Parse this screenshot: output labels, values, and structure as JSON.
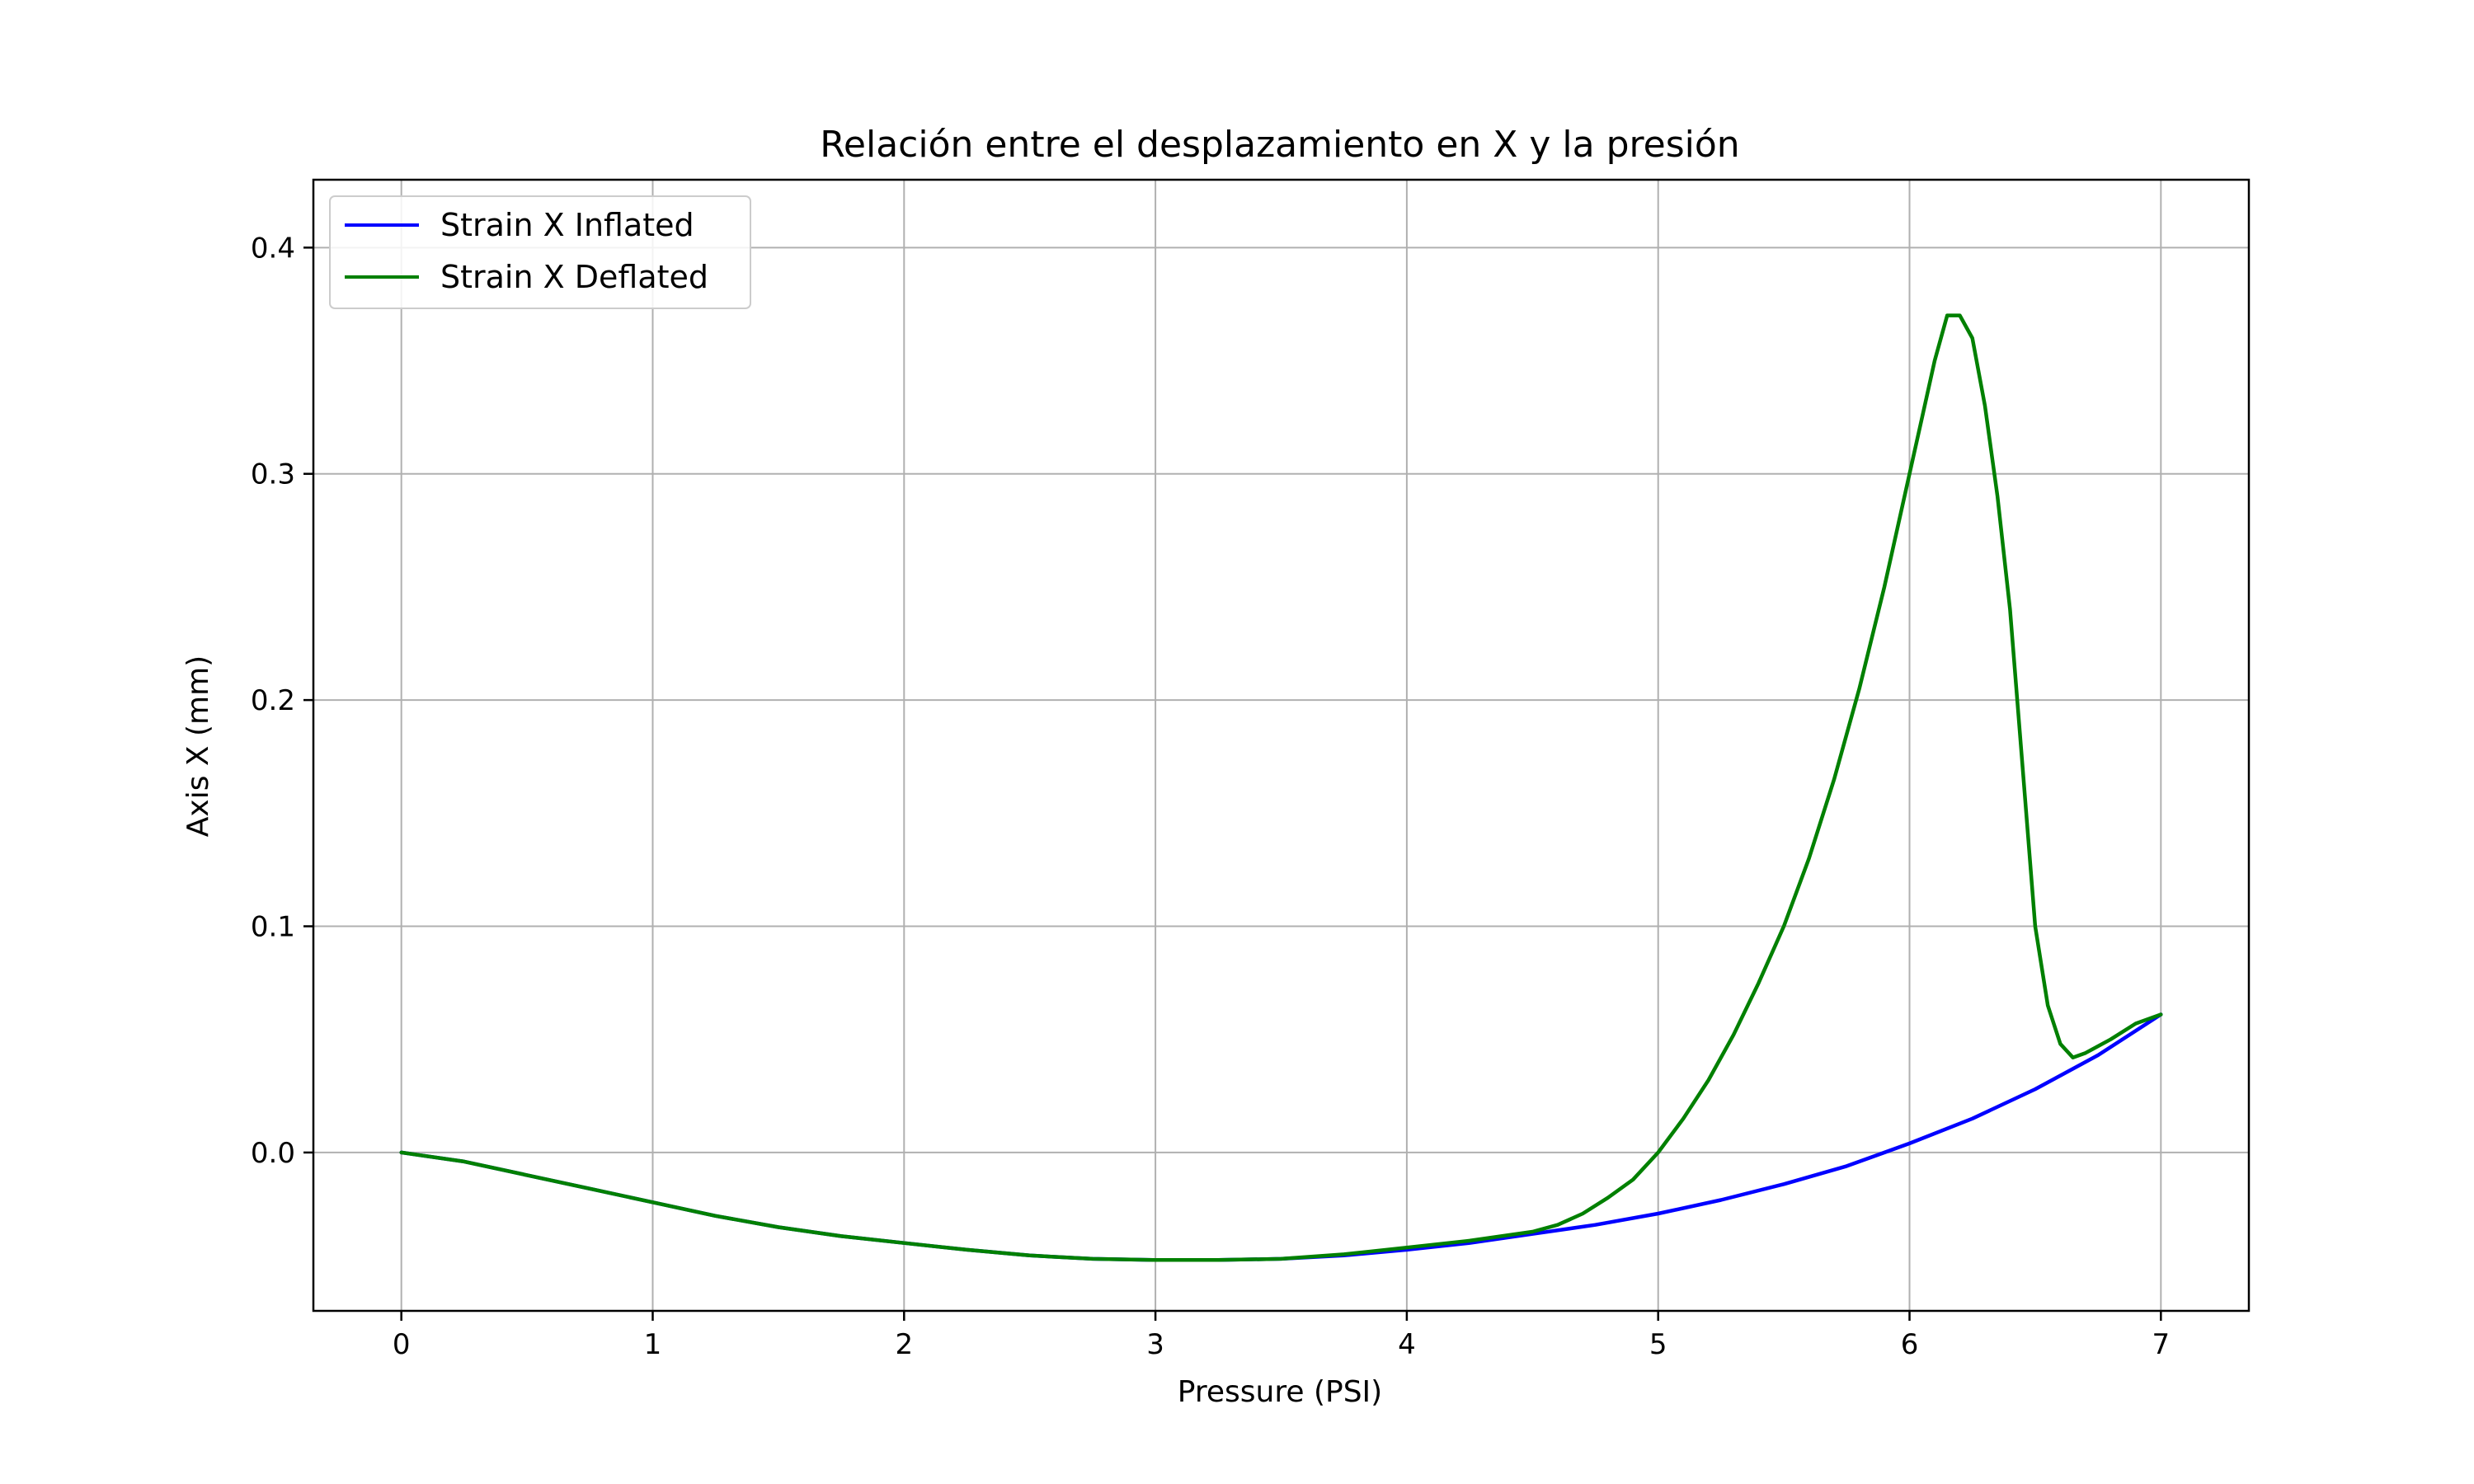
{
  "chart_data": {
    "type": "line",
    "title": "Relación entre el desplazamiento en X y la presión",
    "xlabel": "Pressure (PSI)",
    "ylabel": "Axis X (mm)",
    "xlim": [
      -0.35,
      7.35
    ],
    "ylim": [
      -0.07,
      0.43
    ],
    "xticks": [
      0,
      1,
      2,
      3,
      4,
      5,
      6,
      7
    ],
    "xtick_labels": [
      "0",
      "1",
      "2",
      "3",
      "4",
      "5",
      "6",
      "7"
    ],
    "yticks": [
      0.0,
      0.1,
      0.2,
      0.3,
      0.4
    ],
    "ytick_labels": [
      "0.0",
      "0.1",
      "0.2",
      "0.3",
      "0.4"
    ],
    "grid": true,
    "legend_position": "top-left",
    "series": [
      {
        "name": "Strain X Inflated",
        "color": "#0000ff",
        "x": [
          0,
          0.25,
          0.5,
          0.75,
          1.0,
          1.25,
          1.5,
          1.75,
          2.0,
          2.25,
          2.5,
          2.75,
          3.0,
          3.25,
          3.5,
          3.75,
          4.0,
          4.25,
          4.5,
          4.75,
          5.0,
          5.25,
          5.5,
          5.75,
          6.0,
          6.25,
          6.5,
          6.75,
          7.0
        ],
        "y": [
          0.0,
          -0.004,
          -0.01,
          -0.016,
          -0.022,
          -0.028,
          -0.033,
          -0.037,
          -0.04,
          -0.043,
          -0.0455,
          -0.047,
          -0.0475,
          -0.0475,
          -0.047,
          -0.0455,
          -0.043,
          -0.04,
          -0.036,
          -0.032,
          -0.027,
          -0.021,
          -0.014,
          -0.006,
          0.004,
          0.015,
          0.028,
          0.043,
          0.061
        ]
      },
      {
        "name": "Strain X Deflated",
        "color": "#008000",
        "x": [
          0,
          0.25,
          0.5,
          0.75,
          1.0,
          1.25,
          1.5,
          1.75,
          2.0,
          2.25,
          2.5,
          2.75,
          3.0,
          3.25,
          3.5,
          3.75,
          4.0,
          4.25,
          4.5,
          4.6,
          4.7,
          4.8,
          4.9,
          5.0,
          5.1,
          5.2,
          5.3,
          5.4,
          5.5,
          5.6,
          5.7,
          5.8,
          5.9,
          6.0,
          6.05,
          6.1,
          6.15,
          6.2,
          6.25,
          6.3,
          6.35,
          6.4,
          6.45,
          6.5,
          6.55,
          6.6,
          6.65,
          6.7,
          6.8,
          6.9,
          7.0
        ],
        "y": [
          0.0,
          -0.004,
          -0.01,
          -0.016,
          -0.022,
          -0.028,
          -0.033,
          -0.037,
          -0.04,
          -0.043,
          -0.0455,
          -0.047,
          -0.0475,
          -0.0475,
          -0.047,
          -0.045,
          -0.042,
          -0.039,
          -0.035,
          -0.032,
          -0.027,
          -0.02,
          -0.012,
          0.0,
          0.015,
          0.032,
          0.052,
          0.075,
          0.1,
          0.13,
          0.165,
          0.205,
          0.25,
          0.3,
          0.325,
          0.35,
          0.37,
          0.37,
          0.36,
          0.33,
          0.29,
          0.24,
          0.17,
          0.1,
          0.065,
          0.048,
          0.042,
          0.044,
          0.05,
          0.057,
          0.061
        ]
      }
    ]
  }
}
